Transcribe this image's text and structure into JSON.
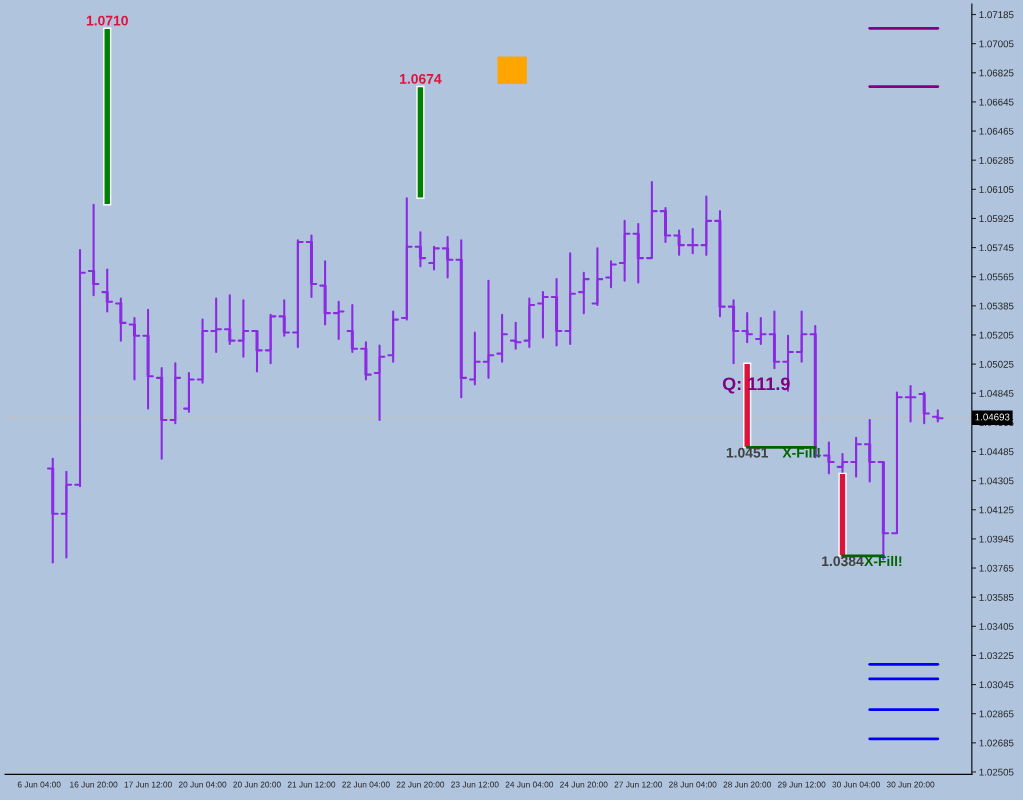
{
  "chart_data": {
    "type": "candlestick",
    "categories": [
      "6 Jun 04:00",
      null,
      null,
      null,
      "16 Jun 20:00",
      null,
      null,
      null,
      "17 Jun 12:00",
      null,
      null,
      null,
      "20 Jun 04:00",
      null,
      null,
      null,
      "20 Jun 20:00",
      null,
      null,
      null,
      "21 Jun 12:00",
      null,
      null,
      null,
      "22 Jun 04:00",
      null,
      null,
      null,
      "22 Jun 20:00",
      null,
      null,
      null,
      "23 Jun 12:00",
      null,
      null,
      null,
      "24 Jun 04:00",
      null,
      null,
      null,
      "24 Jun 20:00",
      null,
      null,
      null,
      "27 Jun 12:00",
      null,
      null,
      null,
      "28 Jun 04:00",
      null,
      null,
      null,
      "28 Jun 20:00",
      null,
      null,
      null,
      "29 Jun 12:00",
      null,
      null,
      null,
      "30 Jun 04:00",
      null,
      null,
      null,
      "30 Jun 20:00",
      null,
      null
    ],
    "series": [
      {
        "color": "#8a2be2",
        "ohlc": [
          null,
          [
            1.0438,
            1.0444,
            1.038,
            1.041
          ],
          [
            1.041,
            1.0436,
            1.0383,
            1.0428
          ],
          [
            1.0428,
            1.0573,
            1.0427,
            1.0559
          ],
          [
            1.056,
            1.0601,
            1.0545,
            1.0552
          ],
          [
            1.0547,
            1.0561,
            1.0535,
            1.0541
          ],
          [
            1.054,
            1.0543,
            1.0517,
            1.0528
          ],
          [
            1.0527,
            1.0531,
            1.0493,
            1.052
          ],
          [
            1.052,
            1.0536,
            1.0475,
            1.0495
          ],
          [
            1.0494,
            1.05,
            1.0444,
            1.0468
          ],
          [
            1.0468,
            1.0503,
            1.0466,
            1.0494
          ],
          [
            1.0475,
            1.0497,
            1.0473,
            1.0493
          ],
          [
            1.0493,
            1.053,
            1.0491,
            1.0523
          ],
          [
            1.0523,
            1.0543,
            1.051,
            1.0524
          ],
          [
            1.0524,
            1.0545,
            1.0515,
            1.0517
          ],
          [
            1.0517,
            1.0542,
            1.0507,
            1.0523
          ],
          [
            1.0523,
            1.0523,
            1.0498,
            1.0511
          ],
          [
            1.0511,
            1.0533,
            1.0503,
            1.0532
          ],
          [
            1.0532,
            1.0542,
            1.052,
            1.0522
          ],
          [
            1.0522,
            1.0579,
            1.0513,
            1.0578
          ],
          [
            1.0578,
            1.0582,
            1.0544,
            1.0552
          ],
          [
            1.0551,
            1.0566,
            1.0527,
            1.0534
          ],
          [
            1.0534,
            1.0541,
            1.0518,
            1.0535
          ],
          [
            1.0523,
            1.0539,
            1.051,
            1.0512
          ],
          [
            1.0512,
            1.0516,
            1.0493,
            1.0496
          ],
          [
            1.0497,
            1.0514,
            1.0468,
            1.0507
          ],
          [
            1.0508,
            1.0535,
            1.0504,
            1.053
          ],
          [
            1.0531,
            1.0605,
            1.053,
            1.0575
          ],
          [
            1.0575,
            1.0584,
            1.0563,
            1.0568
          ],
          [
            1.0565,
            1.0575,
            1.0561,
            1.0574
          ],
          [
            1.0574,
            1.0581,
            1.0556,
            1.0567
          ],
          [
            1.0567,
            1.0579,
            1.0482,
            1.0494
          ],
          [
            1.0493,
            1.0522,
            1.049,
            1.0504
          ],
          [
            1.0504,
            1.0554,
            1.0494,
            1.0508
          ],
          [
            1.0509,
            1.0533,
            1.0504,
            1.0521
          ],
          [
            1.0517,
            1.0528,
            1.0512,
            1.0516
          ],
          [
            1.0517,
            1.0543,
            1.0513,
            1.0539
          ],
          [
            1.054,
            1.0547,
            1.0519,
            1.0544
          ],
          [
            1.0544,
            1.0555,
            1.0514,
            1.0523
          ],
          [
            1.0523,
            1.0571,
            1.0515,
            1.0546
          ],
          [
            1.0547,
            1.0559,
            1.0534,
            1.0555
          ],
          [
            1.054,
            1.0574,
            1.0539,
            1.0555
          ],
          [
            1.0556,
            1.0566,
            1.055,
            1.0564
          ],
          [
            1.0565,
            1.0591,
            1.0554,
            1.0583
          ],
          [
            1.0583,
            1.0589,
            1.0553,
            1.0568
          ],
          [
            1.0568,
            1.0615,
            1.0568,
            1.0597
          ],
          [
            1.0597,
            1.0599,
            1.0578,
            1.0582
          ],
          [
            1.0582,
            1.0585,
            1.057,
            1.0576
          ],
          [
            1.0576,
            1.0586,
            1.0571,
            1.0576
          ],
          [
            1.0576,
            1.0606,
            1.057,
            1.0591
          ],
          [
            1.0591,
            1.0597,
            1.0532,
            1.0538
          ],
          [
            1.0538,
            1.0542,
            1.0503,
            1.0523
          ],
          [
            1.0523,
            1.0534,
            1.0516,
            1.0521
          ],
          [
            1.0518,
            1.0531,
            1.0515,
            1.0521
          ],
          [
            1.0521,
            1.0535,
            1.05,
            1.0504
          ],
          [
            1.0504,
            1.052,
            1.0486,
            1.051
          ],
          [
            1.051,
            1.0535,
            1.0504,
            1.0521
          ],
          [
            1.0521,
            1.0526,
            1.0445,
            1.0446
          ],
          [
            1.0446,
            1.0454,
            1.0435,
            1.0442
          ],
          [
            1.0439,
            1.0447,
            1.0435,
            1.0442
          ],
          [
            1.0442,
            1.0457,
            1.0433,
            1.0453
          ],
          [
            1.0453,
            1.0468,
            1.043,
            1.0442
          ],
          [
            1.0442,
            1.0442,
            1.0382,
            1.0398
          ],
          [
            1.0398,
            1.0485,
            1.0398,
            1.0482
          ],
          [
            1.0482,
            1.0489,
            1.0467,
            1.0482
          ],
          [
            1.0484,
            1.0485,
            1.0466,
            1.0472
          ],
          [
            1.047,
            1.0474,
            1.0467,
            1.0469
          ]
        ]
      },
      {
        "type": "bar",
        "color": "#008000",
        "base": [
          null,
          null,
          null,
          null,
          null,
          1.0601,
          null,
          null,
          null,
          null,
          null,
          null,
          null,
          null,
          null,
          null,
          null,
          null,
          null,
          null,
          null,
          null,
          null,
          null,
          null,
          null,
          null,
          null,
          1.0605,
          null,
          null,
          null,
          null,
          null,
          null,
          null,
          null,
          null,
          null,
          null,
          null,
          null,
          null,
          null,
          null,
          null,
          null,
          null,
          null,
          null,
          null,
          null,
          null,
          null,
          null,
          null,
          null,
          null,
          null,
          null,
          null,
          null,
          null,
          null,
          null,
          null,
          null
        ],
        "values": [
          null,
          null,
          null,
          null,
          null,
          0.0109,
          null,
          null,
          null,
          null,
          null,
          null,
          null,
          null,
          null,
          null,
          null,
          null,
          null,
          null,
          null,
          null,
          null,
          null,
          null,
          null,
          null,
          null,
          0.0069,
          null,
          null,
          null,
          null,
          null,
          null,
          null,
          null,
          null,
          null,
          null,
          null,
          null,
          null,
          null,
          null,
          null,
          null,
          null,
          null,
          null,
          null,
          null,
          null,
          null,
          null,
          null,
          null,
          null,
          null,
          null,
          null,
          null,
          null,
          null,
          null,
          null,
          null
        ],
        "value_labels": [
          null,
          null,
          null,
          null,
          null,
          "1.0710",
          null,
          null,
          null,
          null,
          null,
          null,
          null,
          null,
          null,
          null,
          null,
          null,
          null,
          null,
          null,
          null,
          null,
          null,
          null,
          null,
          null,
          null,
          "1.0674",
          null,
          null,
          null,
          null,
          null,
          null,
          null,
          null,
          null,
          null,
          null,
          null,
          null,
          null,
          null,
          null,
          null,
          null,
          null,
          null,
          null,
          null,
          null,
          null,
          null,
          null,
          null,
          null,
          null,
          null,
          null,
          null,
          null,
          null,
          null,
          null,
          null,
          null
        ]
      },
      {
        "type": "bar",
        "color": "#dc143c",
        "base": [
          null,
          null,
          null,
          null,
          null,
          null,
          null,
          null,
          null,
          null,
          null,
          null,
          null,
          null,
          null,
          null,
          null,
          null,
          null,
          null,
          null,
          null,
          null,
          null,
          null,
          null,
          null,
          null,
          null,
          null,
          null,
          null,
          null,
          null,
          null,
          null,
          null,
          null,
          null,
          null,
          null,
          null,
          null,
          null,
          null,
          null,
          null,
          null,
          null,
          null,
          null,
          null,
          1.0503,
          null,
          null,
          null,
          null,
          null,
          null,
          1.0435,
          null,
          null,
          null,
          null,
          null,
          null,
          null
        ],
        "values": [
          null,
          null,
          null,
          null,
          null,
          null,
          null,
          null,
          null,
          null,
          null,
          null,
          null,
          null,
          null,
          null,
          null,
          null,
          null,
          null,
          null,
          null,
          null,
          null,
          null,
          null,
          null,
          null,
          null,
          null,
          null,
          null,
          null,
          null,
          null,
          null,
          null,
          null,
          null,
          null,
          null,
          null,
          null,
          null,
          null,
          null,
          null,
          null,
          null,
          null,
          null,
          null,
          -0.0052,
          null,
          null,
          null,
          null,
          null,
          null,
          -0.0051,
          null,
          null,
          null,
          null,
          null,
          null,
          null
        ],
        "value_labels": [
          null,
          null,
          null,
          null,
          null,
          null,
          null,
          null,
          null,
          null,
          null,
          null,
          null,
          null,
          null,
          null,
          null,
          null,
          null,
          null,
          null,
          null,
          null,
          null,
          null,
          null,
          null,
          null,
          null,
          null,
          null,
          null,
          null,
          null,
          null,
          null,
          null,
          null,
          null,
          null,
          null,
          null,
          null,
          null,
          null,
          null,
          null,
          null,
          null,
          null,
          null,
          null,
          "1.0451",
          null,
          null,
          null,
          null,
          null,
          null,
          "1.0384",
          null,
          null,
          null,
          null,
          null,
          null,
          null
        ]
      },
      {
        "type": "line",
        "color": "#006400",
        "values": [
          null,
          null,
          null,
          null,
          null,
          null,
          null,
          null,
          null,
          null,
          null,
          null,
          null,
          null,
          null,
          null,
          null,
          null,
          null,
          null,
          null,
          null,
          null,
          null,
          null,
          null,
          null,
          null,
          null,
          null,
          null,
          null,
          null,
          null,
          null,
          null,
          null,
          null,
          null,
          null,
          null,
          null,
          null,
          null,
          null,
          null,
          null,
          null,
          null,
          null,
          null,
          null,
          1.0451,
          1.0451,
          1.0451,
          1.0451,
          1.0451,
          1.0451,
          null,
          1.0384,
          1.0384,
          1.0384,
          1.0384,
          null,
          null,
          null,
          null
        ],
        "value_labels": [
          null,
          null,
          null,
          null,
          null,
          null,
          null,
          null,
          null,
          null,
          null,
          null,
          null,
          null,
          null,
          null,
          null,
          null,
          null,
          null,
          null,
          null,
          null,
          null,
          null,
          null,
          null,
          null,
          null,
          null,
          null,
          null,
          null,
          null,
          null,
          null,
          null,
          null,
          null,
          null,
          null,
          null,
          null,
          null,
          null,
          null,
          null,
          null,
          null,
          null,
          null,
          null,
          null,
          null,
          null,
          null,
          "X-Fill!",
          null,
          null,
          null,
          null,
          null,
          "X-Fill!",
          null,
          null,
          null,
          null
        ]
      },
      {
        "type": "line",
        "color": "#800080",
        "values": [
          null,
          null,
          null,
          null,
          null,
          null,
          null,
          null,
          null,
          null,
          null,
          null,
          null,
          null,
          null,
          null,
          null,
          null,
          null,
          null,
          null,
          null,
          null,
          null,
          null,
          null,
          null,
          null,
          null,
          null,
          null,
          null,
          null,
          null,
          null,
          null,
          null,
          null,
          null,
          null,
          null,
          null,
          null,
          null,
          null,
          null,
          null,
          null,
          null,
          null,
          null,
          null,
          null,
          null,
          null,
          null,
          null,
          null,
          null,
          null,
          null,
          1.071,
          1.071,
          1.071,
          1.071,
          1.071,
          1.071
        ]
      },
      {
        "type": "line",
        "color": "#800080",
        "values": [
          null,
          null,
          null,
          null,
          null,
          null,
          null,
          null,
          null,
          null,
          null,
          null,
          null,
          null,
          null,
          null,
          null,
          null,
          null,
          null,
          null,
          null,
          null,
          null,
          null,
          null,
          null,
          null,
          null,
          null,
          null,
          null,
          null,
          null,
          null,
          null,
          null,
          null,
          null,
          null,
          null,
          null,
          null,
          null,
          null,
          null,
          null,
          null,
          null,
          null,
          null,
          null,
          null,
          null,
          null,
          null,
          null,
          null,
          null,
          null,
          null,
          1.0674,
          1.0674,
          1.0674,
          1.0674,
          1.0674,
          1.0674
        ]
      },
      {
        "type": "line",
        "color": "#0000ff",
        "values": [
          null,
          null,
          null,
          null,
          null,
          null,
          null,
          null,
          null,
          null,
          null,
          null,
          null,
          null,
          null,
          null,
          null,
          null,
          null,
          null,
          null,
          null,
          null,
          null,
          null,
          null,
          null,
          null,
          null,
          null,
          null,
          null,
          null,
          null,
          null,
          null,
          null,
          null,
          null,
          null,
          null,
          null,
          null,
          null,
          null,
          null,
          null,
          null,
          null,
          null,
          null,
          null,
          null,
          null,
          null,
          null,
          null,
          null,
          null,
          null,
          null,
          1.0317,
          1.0317,
          1.0317,
          1.0317,
          1.0317,
          1.0317
        ]
      },
      {
        "type": "line",
        "color": "#0000ff",
        "values": [
          null,
          null,
          null,
          null,
          null,
          null,
          null,
          null,
          null,
          null,
          null,
          null,
          null,
          null,
          null,
          null,
          null,
          null,
          null,
          null,
          null,
          null,
          null,
          null,
          null,
          null,
          null,
          null,
          null,
          null,
          null,
          null,
          null,
          null,
          null,
          null,
          null,
          null,
          null,
          null,
          null,
          null,
          null,
          null,
          null,
          null,
          null,
          null,
          null,
          null,
          null,
          null,
          null,
          null,
          null,
          null,
          null,
          null,
          null,
          null,
          null,
          1.0308,
          1.0308,
          1.0308,
          1.0308,
          1.0308,
          1.0308
        ]
      },
      {
        "type": "line",
        "color": "#0000ff",
        "values": [
          null,
          null,
          null,
          null,
          null,
          null,
          null,
          null,
          null,
          null,
          null,
          null,
          null,
          null,
          null,
          null,
          null,
          null,
          null,
          null,
          null,
          null,
          null,
          null,
          null,
          null,
          null,
          null,
          null,
          null,
          null,
          null,
          null,
          null,
          null,
          null,
          null,
          null,
          null,
          null,
          null,
          null,
          null,
          null,
          null,
          null,
          null,
          null,
          null,
          null,
          null,
          null,
          null,
          null,
          null,
          null,
          null,
          null,
          null,
          null,
          null,
          1.0289,
          1.0289,
          1.0289,
          1.0289,
          1.0289,
          1.0289
        ]
      },
      {
        "type": "line",
        "color": "#0000ff",
        "values": [
          null,
          null,
          null,
          null,
          null,
          null,
          null,
          null,
          null,
          null,
          null,
          null,
          null,
          null,
          null,
          null,
          null,
          null,
          null,
          null,
          null,
          null,
          null,
          null,
          null,
          null,
          null,
          null,
          null,
          null,
          null,
          null,
          null,
          null,
          null,
          null,
          null,
          null,
          null,
          null,
          null,
          null,
          null,
          null,
          null,
          null,
          null,
          null,
          null,
          null,
          null,
          null,
          null,
          null,
          null,
          null,
          null,
          null,
          null,
          null,
          null,
          1.0271,
          1.0271,
          1.0271,
          1.0271,
          1.0271,
          1.0271
        ]
      }
    ],
    "ylim": [
      1.0249,
      1.0725
    ],
    "yticks": [
      1.02505,
      1.02685,
      1.02865,
      1.03045,
      1.03225,
      1.03405,
      1.03585,
      1.03765,
      1.03945,
      1.04125,
      1.04305,
      1.04485,
      1.04665,
      1.04845,
      1.05025,
      1.05205,
      1.05385,
      1.05565,
      1.05745,
      1.05925,
      1.06105,
      1.06285,
      1.06465,
      1.06645,
      1.06825,
      1.07005,
      1.07185
    ],
    "ref_lines": [
      {
        "axis": "y",
        "value": 1.04693,
        "label": "1.04693",
        "color": "#c0c0c0"
      }
    ],
    "annotations": [
      "Q: 111.9"
    ],
    "grid": false,
    "legend": false
  }
}
